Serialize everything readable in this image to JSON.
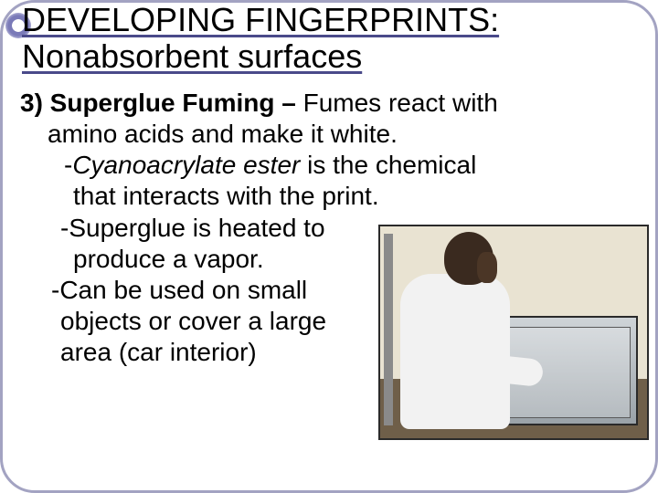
{
  "title": {
    "line1": "DEVELOPING FINGERPRINTS:",
    "line2": "Nonabsorbent surfaces"
  },
  "body": {
    "r1a": "3) Superglue Fuming –",
    "r1b": " Fumes react with",
    "r2": "amino acids and make it white.",
    "r3a": "-",
    "r3b": "Cyanoacrylate ester",
    "r3c": " is the chemical",
    "r4": "that interacts with  the print.",
    "r5": "-Superglue is heated to",
    "r6": "produce a vapor.",
    "r7": "-Can be used on small",
    "r8": "objects or cover a large",
    "r9": "area (car interior)"
  },
  "colors": {
    "frame_border": "#a3a3c2",
    "underline": "#4a4a8a",
    "bullet": "#7a7ab8",
    "text": "#000000",
    "photo_border": "#2a2a2a"
  },
  "photo": {
    "description": "lab-superglue-fuming-chamber"
  }
}
